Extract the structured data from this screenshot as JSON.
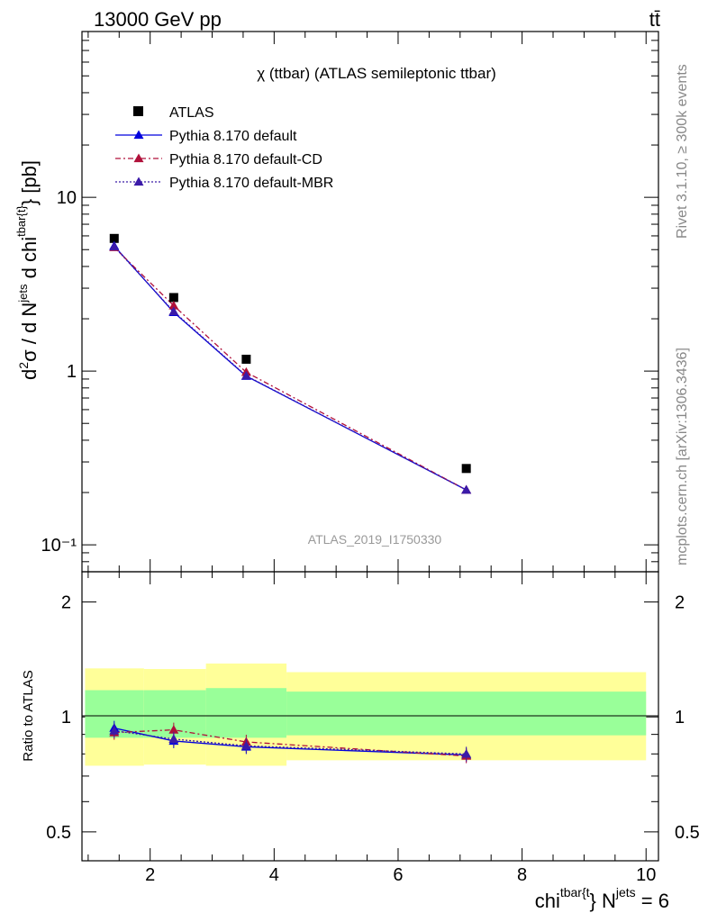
{
  "header": {
    "left": "13000 GeV pp",
    "right": "tt̄"
  },
  "side_texts": {
    "rivet": "Rivet 3.1.10, ≥ 300k events",
    "mcplots": "mcplots.cern.ch [arXiv:1306.3436]"
  },
  "chart_data": [
    {
      "type": "line",
      "title": "χ (ttbar) (ATLAS semileptonic ttbar)",
      "watermark": "ATLAS_2019_I1750330",
      "xlabel": "chi^{tbar{t}} N^{jets} = 6",
      "ylabel": "d²σ / d N^{jets} d chi^{tbar{t}} [pb]",
      "yscale": "log",
      "xlim": [
        0.9,
        10.2
      ],
      "ylim": [
        0.07,
        90
      ],
      "legend_position": "top-left",
      "x_ticks": [
        "2",
        "4",
        "6",
        "8",
        "10"
      ],
      "y_ticks": [
        "10⁻¹",
        "1",
        "10"
      ],
      "series": [
        {
          "name": "ATLAS",
          "marker": "square",
          "color": "#000000",
          "x": [
            1.42,
            2.38,
            3.55,
            7.1
          ],
          "y": [
            5.8,
            2.65,
            1.17,
            0.275
          ]
        },
        {
          "name": "Pythia 8.170 default",
          "marker": "triangle",
          "line": "solid",
          "color": "#0000dd",
          "x": [
            1.42,
            2.38,
            3.55,
            7.1
          ],
          "y": [
            5.25,
            2.18,
            0.935,
            0.207
          ]
        },
        {
          "name": "Pythia 8.170 default-CD",
          "marker": "triangle",
          "line": "dashdot",
          "color": "#b0103a",
          "x": [
            1.42,
            2.38,
            3.55,
            7.1
          ],
          "y": [
            5.15,
            2.38,
            0.985,
            0.207
          ]
        },
        {
          "name": "Pythia 8.170 default-MBR",
          "marker": "triangle",
          "line": "dotted",
          "color": "#3b1aa8",
          "x": [
            1.42,
            2.38,
            3.55,
            7.1
          ],
          "y": [
            5.2,
            2.2,
            0.94,
            0.207
          ]
        }
      ]
    },
    {
      "type": "line",
      "title": "",
      "xlabel": "",
      "ylabel": "Ratio to ATLAS",
      "yscale": "log",
      "ylim": [
        0.42,
        2.4
      ],
      "y_ticks": [
        "0.5",
        "1",
        "2"
      ],
      "reference_line": 1.0,
      "bands": [
        {
          "x0": 0.95,
          "x1": 1.9,
          "inner": [
            0.882,
            1.175
          ],
          "outer": [
            0.745,
            1.34
          ]
        },
        {
          "x0": 1.9,
          "x1": 2.9,
          "inner": [
            0.882,
            1.175
          ],
          "outer": [
            0.75,
            1.335
          ]
        },
        {
          "x0": 2.9,
          "x1": 4.2,
          "inner": [
            0.882,
            1.19
          ],
          "outer": [
            0.745,
            1.38
          ]
        },
        {
          "x0": 4.2,
          "x1": 10.0,
          "inner": [
            0.895,
            1.165
          ],
          "outer": [
            0.77,
            1.31
          ]
        }
      ],
      "band_colors": {
        "inner": "#99ff99",
        "outer": "#ffff99"
      },
      "series": [
        {
          "name": "Pythia 8.170 default",
          "color": "#0000dd",
          "line": "solid",
          "x": [
            1.42,
            2.38,
            3.55,
            7.1
          ],
          "y": [
            0.935,
            0.865,
            0.835,
            0.795
          ]
        },
        {
          "name": "Pythia 8.170 default-CD",
          "color": "#b0103a",
          "line": "dashdot",
          "x": [
            1.42,
            2.38,
            3.55,
            7.1
          ],
          "y": [
            0.91,
            0.925,
            0.86,
            0.79
          ]
        },
        {
          "name": "Pythia 8.170 default-MBR",
          "color": "#3b1aa8",
          "line": "dotted",
          "x": [
            1.42,
            2.38,
            3.55,
            7.1
          ],
          "y": [
            0.92,
            0.875,
            0.84,
            0.8
          ]
        }
      ]
    }
  ]
}
